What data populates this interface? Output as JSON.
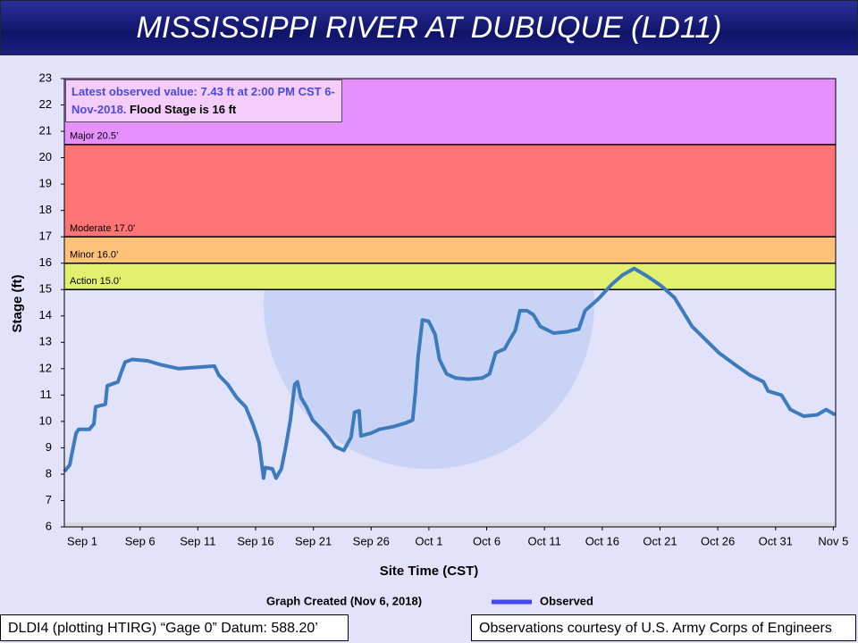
{
  "chart_data": {
    "type": "line",
    "title": "MISSISSIPPI RIVER AT DUBUQUE (LD11)",
    "ylabel": "Stage (ft)",
    "xlabel": "Site Time (CST)",
    "info_observed": "Latest observed value: 7.43 ft at 2:00 PM CST 6-Nov-2018.",
    "info_flood": "Flood Stage is 16 ft",
    "created": "Graph Created (Nov 6, 2018)",
    "footer_left": "DLDI4 (plotting HTIRG) “Gage 0” Datum: 588.20’",
    "footer_right": "Observations courtesy of U.S. Army Corps of Engineers",
    "ylim": [
      6,
      23
    ],
    "yticks": [
      6,
      7,
      8,
      9,
      10,
      11,
      12,
      13,
      14,
      15,
      16,
      17,
      18,
      19,
      20,
      21,
      22,
      23
    ],
    "xlim": [
      -1.55,
      65.2
    ],
    "xticks": [
      {
        "value": 0,
        "label": "Sep 1"
      },
      {
        "value": 5,
        "label": "Sep 6"
      },
      {
        "value": 10,
        "label": "Sep 11"
      },
      {
        "value": 15,
        "label": "Sep 16"
      },
      {
        "value": 20,
        "label": "Sep 21"
      },
      {
        "value": 25,
        "label": "Sep 26"
      },
      {
        "value": 30,
        "label": "Oct 1"
      },
      {
        "value": 35,
        "label": "Oct 6"
      },
      {
        "value": 40,
        "label": "Oct 11"
      },
      {
        "value": 45,
        "label": "Oct 16"
      },
      {
        "value": 50,
        "label": "Oct 21"
      },
      {
        "value": 55,
        "label": "Oct 26"
      },
      {
        "value": 60,
        "label": "Oct 31"
      },
      {
        "value": 65,
        "label": "Nov 5"
      }
    ],
    "flood_categories": [
      {
        "value": 15,
        "label": "Action 15.0’",
        "color": "#e2f070"
      },
      {
        "value": 16,
        "label": "Minor 16.0’",
        "color": "#ffc27a"
      },
      {
        "value": 17,
        "label": "Moderate 17.0’",
        "color": "#ff7474"
      },
      {
        "value": 20.5,
        "label": "Major 20.5’",
        "color": "#e690ff"
      }
    ],
    "series": [
      {
        "name": "Observed",
        "color": "#3d7bbd",
        "legend_color": "#4646ee",
        "x": [
          -1.55,
          -1.08,
          -0.93,
          -0.54,
          -0.31,
          0.62,
          1.0,
          1.16,
          2.0,
          2.16,
          3.09,
          3.32,
          3.71,
          4.33,
          5.64,
          6.8,
          8.35,
          11.44,
          11.82,
          12.6,
          13.37,
          14.14,
          14.76,
          15.3,
          15.69,
          15.84,
          16.46,
          16.77,
          17.23,
          17.62,
          18.01,
          18.39,
          18.62,
          18.93,
          19.4,
          19.94,
          20.71,
          21.33,
          21.87,
          22.64,
          23.26,
          23.57,
          23.96,
          24.11,
          24.96,
          25.73,
          26.89,
          28.05,
          28.59,
          28.83,
          29.06,
          29.44,
          29.98,
          30.53,
          30.91,
          31.53,
          32.3,
          33.46,
          34.62,
          35.24,
          35.78,
          36.55,
          36.94,
          37.48,
          37.87,
          38.49,
          39.03,
          39.64,
          40.8,
          41.96,
          42.97,
          43.51,
          44.67,
          45.83,
          46.75,
          47.76,
          48.92,
          50.08,
          51.24,
          52.01,
          52.78,
          53.94,
          55.1,
          56.65,
          57.8,
          58.96,
          59.35,
          60.51,
          61.28,
          62.44,
          63.6,
          64.37,
          65.15
        ],
        "values": [
          8.1,
          8.35,
          8.7,
          9.55,
          9.7,
          9.7,
          9.9,
          10.55,
          10.65,
          11.35,
          11.5,
          11.8,
          12.25,
          12.35,
          12.3,
          12.15,
          12.0,
          12.1,
          11.75,
          11.4,
          10.9,
          10.55,
          9.9,
          9.2,
          7.85,
          8.25,
          8.2,
          7.85,
          8.2,
          9.05,
          10.05,
          11.4,
          11.5,
          10.9,
          10.55,
          10.05,
          9.7,
          9.4,
          9.05,
          8.9,
          9.4,
          10.35,
          10.4,
          9.45,
          9.55,
          9.7,
          9.8,
          9.95,
          10.05,
          11.1,
          12.45,
          13.85,
          13.8,
          13.3,
          12.35,
          11.8,
          11.65,
          11.6,
          11.65,
          11.8,
          12.6,
          12.75,
          13.05,
          13.45,
          14.2,
          14.2,
          14.05,
          13.6,
          13.35,
          13.4,
          13.5,
          14.2,
          14.65,
          15.2,
          15.55,
          15.8,
          15.5,
          15.15,
          14.7,
          14.15,
          13.6,
          13.1,
          12.6,
          12.1,
          11.75,
          11.5,
          11.15,
          11.0,
          10.45,
          10.2,
          10.25,
          10.45,
          10.25
        ]
      }
    ]
  }
}
